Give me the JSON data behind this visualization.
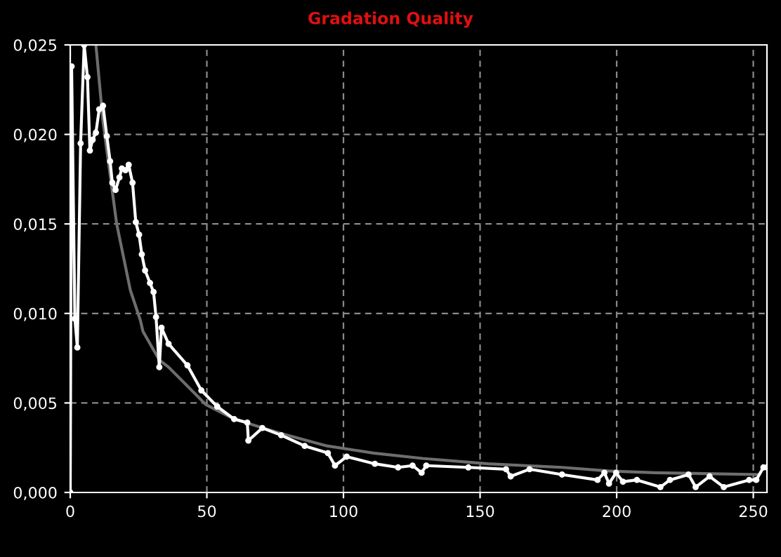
{
  "chart_data": {
    "type": "line",
    "title": "Gradation Quality",
    "xlim": [
      0,
      255
    ],
    "ylim": [
      0,
      0.025
    ],
    "xticks": [
      0,
      50,
      100,
      150,
      200,
      250
    ],
    "yticks": [
      {
        "value": 0,
        "label": "0,000"
      },
      {
        "value": 0.005,
        "label": "0,005"
      },
      {
        "value": 0.01,
        "label": "0,010"
      },
      {
        "value": 0.015,
        "label": "0,015"
      },
      {
        "value": 0.02,
        "label": "0,020"
      },
      {
        "value": 0.025,
        "label": "0,025"
      }
    ],
    "grid": true,
    "series": [
      {
        "color": "#6e6e6e",
        "marker": "none",
        "x": [
          9.4,
          12,
          17,
          22,
          25.7,
          26.6,
          32.6,
          36,
          49.7,
          60,
          77,
          94,
          111,
          129,
          153,
          180,
          197,
          214,
          252
        ],
        "values": [
          0.025,
          0.0207,
          0.015,
          0.0113,
          0.0096,
          0.009,
          0.0074,
          0.007,
          0.0049,
          0.0041,
          0.0033,
          0.0026,
          0.0022,
          0.0019,
          0.0016,
          0.0014,
          0.0012,
          0.0011,
          0.001
        ]
      },
      {
        "color": "#ffffff",
        "marker": "circle",
        "x": [
          0,
          0.5,
          1.7,
          2.6,
          3.8,
          5.1,
          6.3,
          7.2,
          8.2,
          9.4,
          10.6,
          12,
          13.4,
          14.6,
          15.4,
          16.6,
          18,
          18.9,
          20.2,
          21.4,
          22.8,
          24,
          25.2,
          26.2,
          27.4,
          29.2,
          30.5,
          31.4,
          32.6,
          33.4,
          36,
          42.9,
          48,
          53.8,
          60,
          64.8,
          65.2,
          70.3,
          77.2,
          85.8,
          94.3,
          96.9,
          101.2,
          111.5,
          120,
          125.3,
          128.6,
          130.3,
          145.7,
          159.5,
          161.2,
          168.1,
          180,
          193,
          195.5,
          197.2,
          199.8,
          202.3,
          207.4,
          216,
          219.5,
          226.3,
          228.9,
          234,
          239.2,
          248.5,
          251.1,
          253.7,
          255
        ],
        "values": [
          0,
          0.0238,
          0.0097,
          0.0081,
          0.0195,
          0.025,
          0.0232,
          0.0191,
          0.0197,
          0.0201,
          0.0214,
          0.0216,
          0.0199,
          0.0185,
          0.0173,
          0.0169,
          0.0176,
          0.0181,
          0.018,
          0.0183,
          0.0173,
          0.0151,
          0.0144,
          0.0133,
          0.0124,
          0.0117,
          0.0112,
          0.0098,
          0.007,
          0.0092,
          0.0083,
          0.0071,
          0.0057,
          0.0048,
          0.0041,
          0.0039,
          0.0029,
          0.0036,
          0.0032,
          0.0026,
          0.0022,
          0.0015,
          0.002,
          0.0016,
          0.0014,
          0.0015,
          0.0011,
          0.0015,
          0.0014,
          0.0013,
          0.0009,
          0.0013,
          0.001,
          0.0007,
          0.0011,
          0.0005,
          0.0011,
          0.0006,
          0.0007,
          0.0003,
          0.0007,
          0.001,
          0.0003,
          0.0009,
          0.0003,
          0.0007,
          0.0007,
          0.0014,
          0.0014
        ]
      }
    ]
  }
}
